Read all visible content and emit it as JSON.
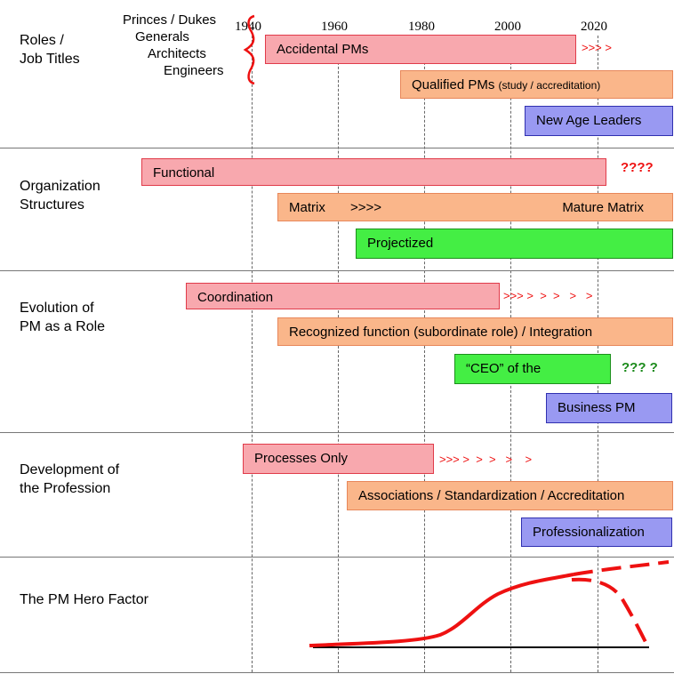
{
  "years": [
    "1940",
    "1960",
    "1980",
    "2000",
    "2020"
  ],
  "sections": [
    {
      "label": "Roles /\nJob Titles"
    },
    {
      "label": "Organization\nStructures"
    },
    {
      "label": "Evolution of\nPM as a Role"
    },
    {
      "label": "Development of\nthe Profession"
    },
    {
      "label": "The PM Hero Factor"
    }
  ],
  "roles": {
    "precursors": [
      "Princes / Dukes",
      "Generals",
      "Architects",
      "Engineers"
    ],
    "accidental": "Accidental PMs",
    "accidental_arrows": ">>>   >",
    "qualified": "Qualified PMs",
    "qualified_note": "(study / accreditation)",
    "new_age": "New Age Leaders"
  },
  "org": {
    "functional": "Functional",
    "functional_q": "????",
    "matrix": "Matrix",
    "matrix_arrows": ">>>>",
    "mature_matrix": "Mature Matrix",
    "projectized": "Projectized"
  },
  "evolution": {
    "coordination": "Coordination",
    "coordination_arrows": ">>> >  >  >   >   >",
    "recognized": "Recognized function (subordinate role) / Integration",
    "ceo": "“CEO” of the",
    "ceo_q": "??? ?",
    "business_pm": "Business PM"
  },
  "profession": {
    "processes": "Processes Only",
    "processes_arrows": ">>> >  >  >   >    >",
    "associations": "Associations / Standardization / Accreditation",
    "professionalization": "Professionalization"
  },
  "colors": {
    "pink": "#f8a8ae",
    "orange": "#fab68a",
    "green": "#44ee44",
    "blue": "#9999f2",
    "red": "#ee1111"
  }
}
